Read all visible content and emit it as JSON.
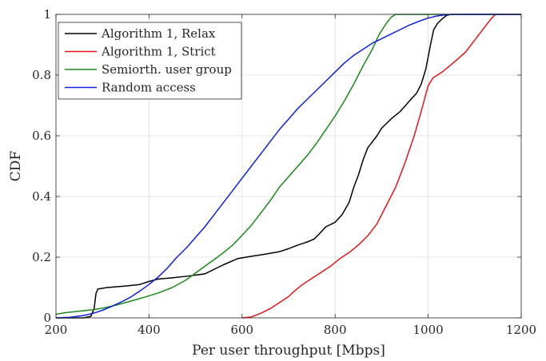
{
  "chart_data": {
    "type": "line",
    "title": "",
    "xlabel": "Per user throughput [Mbps]",
    "ylabel": "CDF",
    "xlim": [
      200,
      1200
    ],
    "ylim": [
      0,
      1
    ],
    "xticks": [
      200,
      400,
      600,
      800,
      1000,
      1200
    ],
    "yticks": [
      0,
      0.2,
      0.4,
      0.6,
      0.8,
      1
    ],
    "xtick_labels": [
      "200",
      "400",
      "600",
      "800",
      "1000",
      "1200"
    ],
    "ytick_labels": [
      "0",
      "0.2",
      "0.4",
      "0.6",
      "0.8",
      "1"
    ],
    "grid": true,
    "legend_position": "top-left",
    "series": [
      {
        "name": "Algorithm 1, Relax",
        "color": "#000000",
        "points": [
          [
            200,
            0
          ],
          [
            260,
            0
          ],
          [
            275,
            0.005
          ],
          [
            282,
            0.03
          ],
          [
            286,
            0.08
          ],
          [
            290,
            0.095
          ],
          [
            310,
            0.1
          ],
          [
            350,
            0.105
          ],
          [
            380,
            0.11
          ],
          [
            400,
            0.12
          ],
          [
            420,
            0.128
          ],
          [
            450,
            0.132
          ],
          [
            480,
            0.137
          ],
          [
            520,
            0.145
          ],
          [
            560,
            0.175
          ],
          [
            590,
            0.195
          ],
          [
            620,
            0.203
          ],
          [
            650,
            0.21
          ],
          [
            680,
            0.218
          ],
          [
            700,
            0.228
          ],
          [
            720,
            0.24
          ],
          [
            740,
            0.25
          ],
          [
            755,
            0.26
          ],
          [
            765,
            0.275
          ],
          [
            780,
            0.3
          ],
          [
            800,
            0.315
          ],
          [
            815,
            0.34
          ],
          [
            830,
            0.38
          ],
          [
            840,
            0.43
          ],
          [
            850,
            0.47
          ],
          [
            860,
            0.52
          ],
          [
            870,
            0.56
          ],
          [
            880,
            0.58
          ],
          [
            890,
            0.6
          ],
          [
            900,
            0.625
          ],
          [
            920,
            0.655
          ],
          [
            940,
            0.68
          ],
          [
            960,
            0.715
          ],
          [
            975,
            0.74
          ],
          [
            985,
            0.77
          ],
          [
            995,
            0.82
          ],
          [
            1005,
            0.9
          ],
          [
            1012,
            0.95
          ],
          [
            1020,
            0.97
          ],
          [
            1030,
            0.985
          ],
          [
            1040,
            0.997
          ],
          [
            1050,
            1
          ],
          [
            1200,
            1
          ]
        ]
      },
      {
        "name": "Algorithm 1, Strict",
        "color": "#e8141a",
        "points": [
          [
            600,
            0
          ],
          [
            620,
            0.003
          ],
          [
            640,
            0.015
          ],
          [
            660,
            0.03
          ],
          [
            680,
            0.05
          ],
          [
            700,
            0.07
          ],
          [
            710,
            0.085
          ],
          [
            730,
            0.11
          ],
          [
            750,
            0.13
          ],
          [
            770,
            0.15
          ],
          [
            790,
            0.17
          ],
          [
            810,
            0.195
          ],
          [
            830,
            0.215
          ],
          [
            850,
            0.24
          ],
          [
            870,
            0.27
          ],
          [
            890,
            0.31
          ],
          [
            910,
            0.37
          ],
          [
            930,
            0.43
          ],
          [
            950,
            0.51
          ],
          [
            970,
            0.6
          ],
          [
            985,
            0.68
          ],
          [
            1000,
            0.765
          ],
          [
            1010,
            0.79
          ],
          [
            1030,
            0.81
          ],
          [
            1050,
            0.835
          ],
          [
            1080,
            0.875
          ],
          [
            1100,
            0.915
          ],
          [
            1120,
            0.955
          ],
          [
            1135,
            0.985
          ],
          [
            1145,
            1
          ],
          [
            1200,
            1
          ]
        ]
      },
      {
        "name": "Semiorth. user group",
        "color": "#1a8a1a",
        "points": [
          [
            200,
            0.012
          ],
          [
            220,
            0.017
          ],
          [
            250,
            0.022
          ],
          [
            280,
            0.027
          ],
          [
            300,
            0.032
          ],
          [
            330,
            0.042
          ],
          [
            360,
            0.055
          ],
          [
            390,
            0.068
          ],
          [
            420,
            0.082
          ],
          [
            450,
            0.1
          ],
          [
            480,
            0.125
          ],
          [
            500,
            0.148
          ],
          [
            520,
            0.17
          ],
          [
            540,
            0.192
          ],
          [
            560,
            0.215
          ],
          [
            580,
            0.24
          ],
          [
            600,
            0.272
          ],
          [
            620,
            0.305
          ],
          [
            640,
            0.345
          ],
          [
            660,
            0.385
          ],
          [
            680,
            0.43
          ],
          [
            700,
            0.465
          ],
          [
            720,
            0.5
          ],
          [
            740,
            0.535
          ],
          [
            760,
            0.575
          ],
          [
            780,
            0.62
          ],
          [
            800,
            0.665
          ],
          [
            820,
            0.715
          ],
          [
            840,
            0.77
          ],
          [
            860,
            0.83
          ],
          [
            880,
            0.885
          ],
          [
            895,
            0.935
          ],
          [
            910,
            0.97
          ],
          [
            920,
            0.99
          ],
          [
            930,
            1
          ],
          [
            1200,
            1
          ]
        ]
      },
      {
        "name": "Random access",
        "color": "#1020e0",
        "points": [
          [
            200,
            0
          ],
          [
            230,
            0.002
          ],
          [
            260,
            0.008
          ],
          [
            280,
            0.015
          ],
          [
            300,
            0.025
          ],
          [
            320,
            0.038
          ],
          [
            340,
            0.052
          ],
          [
            360,
            0.068
          ],
          [
            380,
            0.088
          ],
          [
            400,
            0.11
          ],
          [
            420,
            0.135
          ],
          [
            440,
            0.165
          ],
          [
            460,
            0.2
          ],
          [
            480,
            0.23
          ],
          [
            500,
            0.265
          ],
          [
            520,
            0.3
          ],
          [
            540,
            0.34
          ],
          [
            560,
            0.38
          ],
          [
            580,
            0.42
          ],
          [
            600,
            0.46
          ],
          [
            620,
            0.5
          ],
          [
            640,
            0.54
          ],
          [
            660,
            0.58
          ],
          [
            680,
            0.62
          ],
          [
            700,
            0.655
          ],
          [
            720,
            0.69
          ],
          [
            740,
            0.72
          ],
          [
            760,
            0.75
          ],
          [
            780,
            0.78
          ],
          [
            800,
            0.81
          ],
          [
            820,
            0.84
          ],
          [
            840,
            0.865
          ],
          [
            860,
            0.885
          ],
          [
            880,
            0.905
          ],
          [
            900,
            0.92
          ],
          [
            920,
            0.935
          ],
          [
            940,
            0.95
          ],
          [
            960,
            0.965
          ],
          [
            980,
            0.977
          ],
          [
            1000,
            0.988
          ],
          [
            1020,
            0.995
          ],
          [
            1040,
            0.999
          ],
          [
            1060,
            1
          ],
          [
            1200,
            1
          ]
        ]
      }
    ]
  }
}
